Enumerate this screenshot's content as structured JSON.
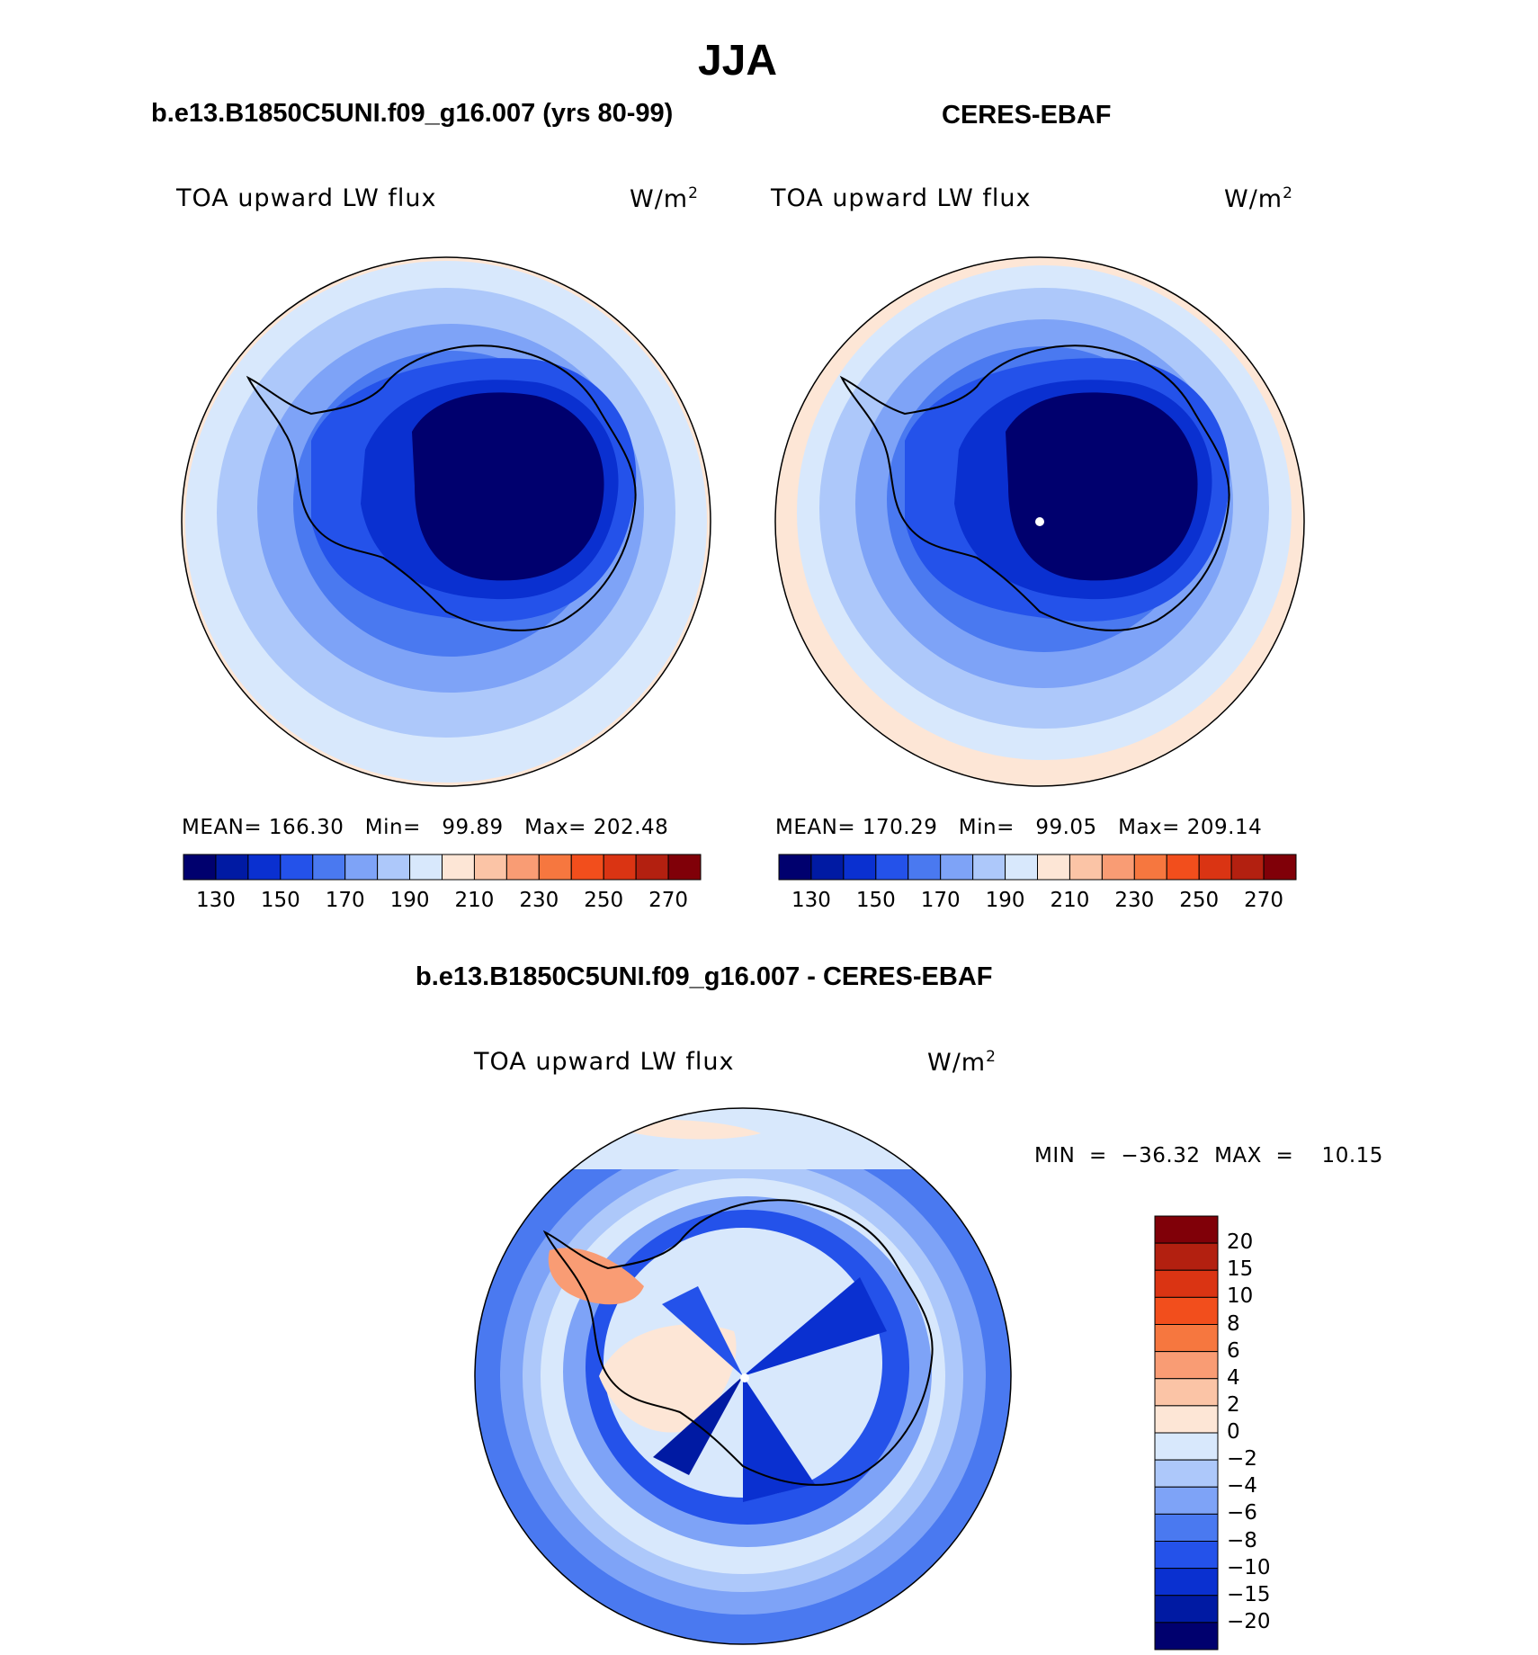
{
  "figure": {
    "season": "JJA",
    "left_panel_title": "b.e13.B1850C5UNI.f09_g16.007 (yrs 80-99)",
    "right_panel_title": "CERES-EBAF",
    "diff_title": "b.e13.B1850C5UNI.f09_g16.007 - CERES-EBAF"
  },
  "panels": {
    "left": {
      "variable": "TOA upward LW flux",
      "units": "W/m",
      "units_exp": "2",
      "stats": "MEAN= 166.30   Min=   99.89   Max= 202.48"
    },
    "right": {
      "variable": "TOA upward LW flux",
      "units": "W/m",
      "units_exp": "2",
      "stats": "MEAN= 170.29   Min=   99.05   Max= 209.14"
    },
    "diff": {
      "variable": "TOA upward LW flux",
      "units": "W/m",
      "units_exp": "2",
      "minmax": "MIN  =  −36.32  MAX  =    10.15"
    }
  },
  "colorbar_main": {
    "labels": [
      "130",
      "150",
      "170",
      "190",
      "210",
      "230",
      "250",
      "270"
    ],
    "colors": [
      "#00006e",
      "#001aa3",
      "#0a30d0",
      "#2452ea",
      "#4a79f0",
      "#7ea3f7",
      "#adc8fa",
      "#d8e8fc",
      "#fde6d6",
      "#fbc4a6",
      "#f99c74",
      "#f6773f",
      "#f24e1c",
      "#da3413",
      "#b32010",
      "#800008"
    ]
  },
  "colorbar_diff": {
    "labels": [
      "20",
      "15",
      "10",
      "8",
      "6",
      "4",
      "2",
      "0",
      "−2",
      "−4",
      "−6",
      "−8",
      "−10",
      "−15",
      "−20"
    ],
    "colors": [
      "#800008",
      "#b32010",
      "#da3413",
      "#f24e1c",
      "#f6773f",
      "#f99c74",
      "#fbc4a6",
      "#fde6d6",
      "#d8e8fc",
      "#adc8fa",
      "#7ea3f7",
      "#4a79f0",
      "#2452ea",
      "#0a30d0",
      "#001aa3",
      "#00006e"
    ]
  }
}
